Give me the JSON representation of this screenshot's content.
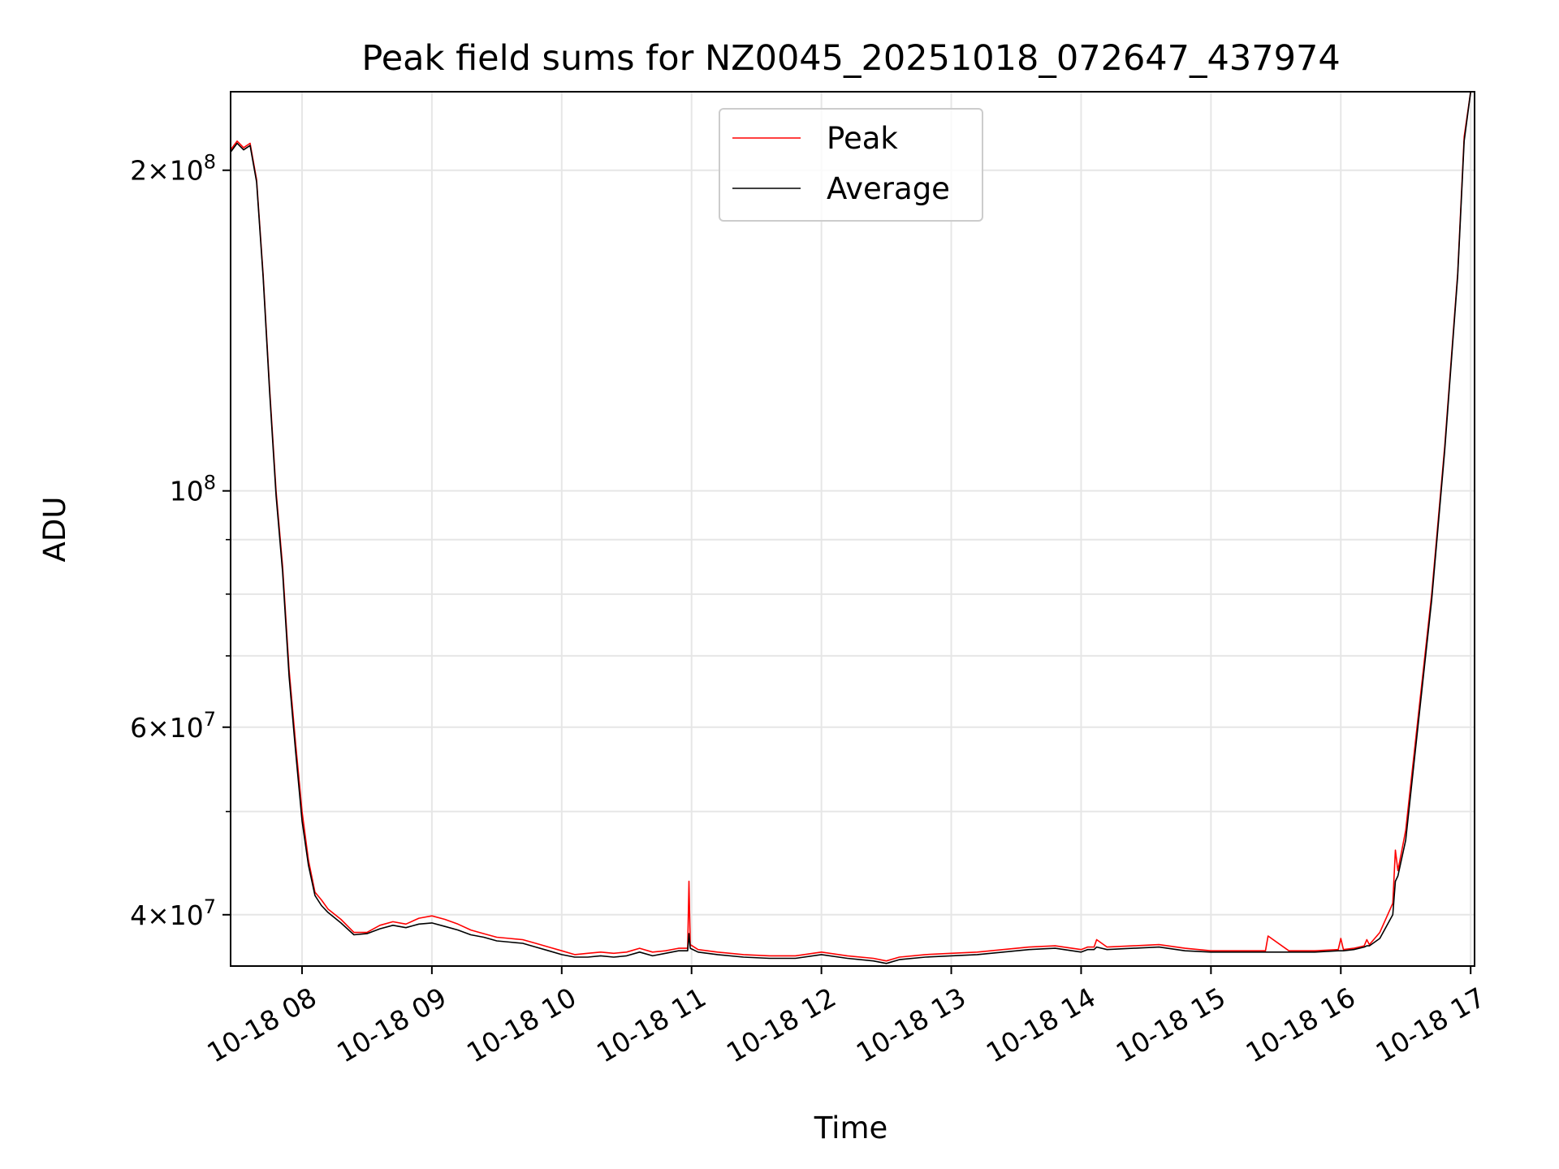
{
  "chart_data": {
    "type": "line",
    "title": "Peak field sums for NZ0045_20251018_072647_437974",
    "xlabel": "Time",
    "ylabel": "ADU",
    "yscale": "log",
    "x_unit": "hours on 2025-10-18",
    "xlim": [
      7.45,
      17.03
    ],
    "ylim": [
      35800000,
      237000000
    ],
    "x_ticks": [
      {
        "value": 8,
        "label": "10-18 08"
      },
      {
        "value": 9,
        "label": "10-18 09"
      },
      {
        "value": 10,
        "label": "10-18 10"
      },
      {
        "value": 11,
        "label": "10-18 11"
      },
      {
        "value": 12,
        "label": "10-18 12"
      },
      {
        "value": 13,
        "label": "10-18 13"
      },
      {
        "value": 14,
        "label": "10-18 14"
      },
      {
        "value": 15,
        "label": "10-18 15"
      },
      {
        "value": 16,
        "label": "10-18 16"
      },
      {
        "value": 17,
        "label": "10-18 17"
      }
    ],
    "y_ticks": [
      {
        "value": 40000000,
        "base": "4",
        "exp": "7"
      },
      {
        "value": 60000000,
        "base": "6",
        "exp": "7"
      },
      {
        "value": 100000000,
        "base": "",
        "exp": "8"
      },
      {
        "value": 200000000,
        "base": "2",
        "exp": "8"
      }
    ],
    "y_minor_ticks": [
      50000000,
      70000000,
      80000000,
      90000000
    ],
    "grid": true,
    "legend_position": "top-center",
    "series": [
      {
        "name": "Peak",
        "color": "#ff0000",
        "x": [
          7.45,
          7.5,
          7.55,
          7.6,
          7.65,
          7.7,
          7.75,
          7.8,
          7.85,
          7.9,
          7.95,
          8.0,
          8.05,
          8.1,
          8.15,
          8.2,
          8.3,
          8.4,
          8.5,
          8.6,
          8.7,
          8.8,
          8.9,
          9.0,
          9.1,
          9.2,
          9.3,
          9.4,
          9.5,
          9.6,
          9.7,
          9.8,
          9.9,
          10.0,
          10.1,
          10.2,
          10.3,
          10.4,
          10.5,
          10.6,
          10.7,
          10.8,
          10.9,
          10.97,
          10.98,
          10.99,
          11.05,
          11.2,
          11.4,
          11.6,
          11.8,
          12.0,
          12.2,
          12.4,
          12.5,
          12.6,
          12.8,
          13.0,
          13.2,
          13.4,
          13.6,
          13.8,
          14.0,
          14.05,
          14.1,
          14.12,
          14.2,
          14.4,
          14.6,
          14.8,
          15.0,
          15.2,
          15.4,
          15.42,
          15.44,
          15.6,
          15.8,
          15.98,
          16.0,
          16.02,
          16.1,
          16.18,
          16.2,
          16.22,
          16.3,
          16.4,
          16.42,
          16.44,
          16.5,
          16.6,
          16.7,
          16.8,
          16.9,
          16.95,
          17.0
        ],
        "y": [
          209000000,
          213000000,
          210000000,
          212000000,
          196000000,
          160000000,
          125000000,
          100000000,
          85000000,
          68000000,
          58000000,
          50000000,
          45000000,
          42000000,
          41300000,
          40500000,
          39600000,
          38500000,
          38500000,
          39100000,
          39400000,
          39200000,
          39700000,
          39900000,
          39600000,
          39200000,
          38700000,
          38400000,
          38100000,
          38000000,
          37900000,
          37600000,
          37300000,
          37000000,
          36700000,
          36800000,
          36900000,
          36800000,
          36900000,
          37200000,
          36900000,
          37000000,
          37200000,
          37200000,
          43000000,
          37500000,
          37100000,
          36900000,
          36700000,
          36600000,
          36600000,
          36900000,
          36600000,
          36400000,
          36200000,
          36500000,
          36700000,
          36800000,
          36900000,
          37100000,
          37300000,
          37400000,
          37100000,
          37300000,
          37300000,
          37900000,
          37300000,
          37400000,
          37500000,
          37200000,
          37000000,
          37000000,
          37000000,
          37000000,
          38200000,
          37000000,
          37000000,
          37100000,
          38000000,
          37100000,
          37200000,
          37400000,
          37900000,
          37500000,
          38500000,
          41000000,
          46000000,
          44000000,
          48000000,
          62000000,
          80000000,
          110000000,
          160000000,
          215000000,
          237000000
        ]
      },
      {
        "name": "Average",
        "color": "#000000",
        "x": [
          7.45,
          7.5,
          7.55,
          7.6,
          7.65,
          7.7,
          7.75,
          7.8,
          7.85,
          7.9,
          7.95,
          8.0,
          8.05,
          8.1,
          8.15,
          8.2,
          8.3,
          8.4,
          8.5,
          8.6,
          8.7,
          8.8,
          8.9,
          9.0,
          9.1,
          9.2,
          9.3,
          9.4,
          9.5,
          9.6,
          9.7,
          9.8,
          9.9,
          10.0,
          10.1,
          10.2,
          10.3,
          10.4,
          10.5,
          10.6,
          10.7,
          10.8,
          10.9,
          10.97,
          10.98,
          10.99,
          11.05,
          11.2,
          11.4,
          11.6,
          11.8,
          12.0,
          12.2,
          12.4,
          12.5,
          12.6,
          12.8,
          13.0,
          13.2,
          13.4,
          13.6,
          13.8,
          14.0,
          14.05,
          14.1,
          14.12,
          14.2,
          14.4,
          14.6,
          14.8,
          15.0,
          15.2,
          15.4,
          15.42,
          15.44,
          15.6,
          15.8,
          15.98,
          16.0,
          16.02,
          16.1,
          16.18,
          16.2,
          16.22,
          16.3,
          16.4,
          16.42,
          16.44,
          16.5,
          16.6,
          16.7,
          16.8,
          16.9,
          16.95,
          17.0
        ],
        "y": [
          208000000,
          212000000,
          209000000,
          211000000,
          195000000,
          159000000,
          124000000,
          99000000,
          84000000,
          67000000,
          57000000,
          49000000,
          44500000,
          41700000,
          40800000,
          40200000,
          39300000,
          38300000,
          38400000,
          38800000,
          39100000,
          38900000,
          39200000,
          39300000,
          39000000,
          38700000,
          38300000,
          38100000,
          37800000,
          37700000,
          37600000,
          37300000,
          37000000,
          36700000,
          36500000,
          36500000,
          36600000,
          36500000,
          36600000,
          36900000,
          36600000,
          36800000,
          37000000,
          37000000,
          38400000,
          37200000,
          36900000,
          36700000,
          36500000,
          36400000,
          36400000,
          36700000,
          36400000,
          36200000,
          36000000,
          36300000,
          36500000,
          36600000,
          36700000,
          36900000,
          37100000,
          37200000,
          36900000,
          37100000,
          37100000,
          37300000,
          37100000,
          37200000,
          37300000,
          37000000,
          36900000,
          36900000,
          36900000,
          36900000,
          36900000,
          36900000,
          36900000,
          37000000,
          37000000,
          37000000,
          37100000,
          37300000,
          37400000,
          37400000,
          38000000,
          40000000,
          43000000,
          43500000,
          47000000,
          61000000,
          79000000,
          109000000,
          159000000,
          213000000,
          237000000
        ]
      }
    ]
  }
}
